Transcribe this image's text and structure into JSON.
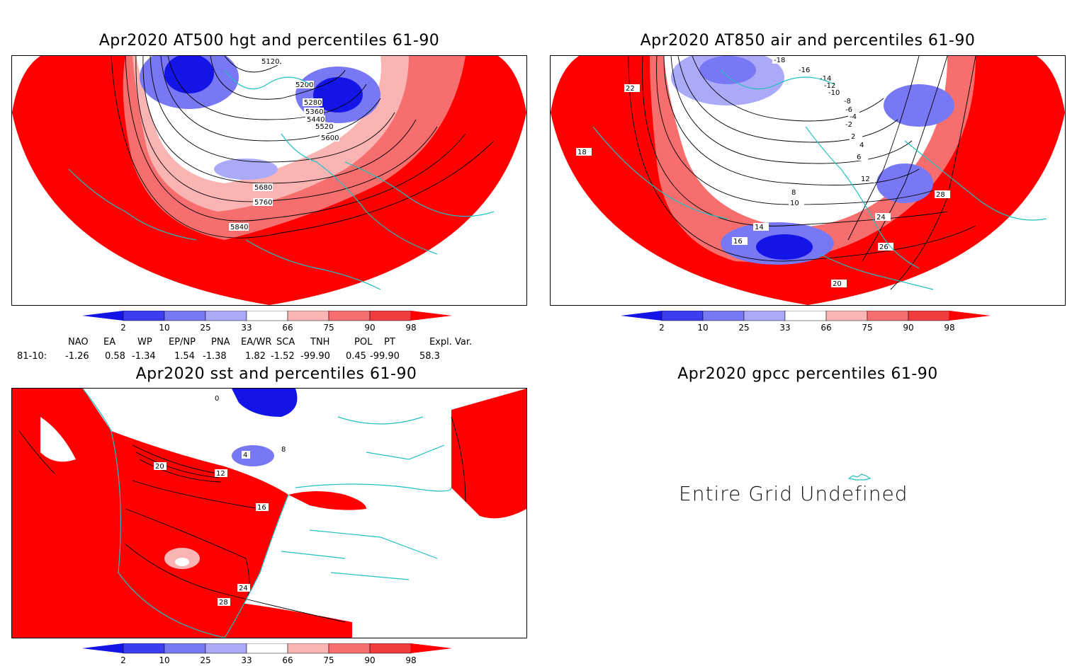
{
  "panels": [
    {
      "title": "Apr2020 AT500 hgt and percentiles 61-90",
      "contour_labels": [
        "5120",
        "5200",
        "5280",
        "5360",
        "5440",
        "5520",
        "5600",
        "5680",
        "5760",
        "5840"
      ]
    },
    {
      "title": "Apr2020 AT850 air and percentiles 61-90",
      "contour_labels": [
        "-18",
        "-16",
        "-14",
        "-12",
        "-10",
        "-8",
        "-6",
        "-4",
        "-2",
        "2",
        "4",
        "6",
        "8",
        "10",
        "12",
        "14",
        "16",
        "18",
        "20",
        "22",
        "24",
        "26",
        "28"
      ]
    },
    {
      "title": "Apr2020 sst and percentiles 61-90",
      "contour_labels": [
        "0",
        "4",
        "8",
        "12",
        "16",
        "20",
        "24",
        "28"
      ]
    },
    {
      "title": "Apr2020 gpcc percentiles 61-90",
      "message": "Entire Grid Undefined"
    }
  ],
  "colorbar": {
    "ticks": [
      "2",
      "10",
      "25",
      "33",
      "66",
      "75",
      "90",
      "98"
    ],
    "colors": [
      "#1414e6",
      "#3c3cf0",
      "#7878f5",
      "#aaaaf8",
      "#ffffff",
      "#fbb4b4",
      "#f76e6e",
      "#f03c3c",
      "#ff0000"
    ]
  },
  "indices": {
    "headers": [
      "NAO",
      "EA",
      "WP",
      "EP/NP",
      "PNA",
      "EA/WR",
      "SCA",
      "TNH",
      "POL",
      "PT",
      "Expl. Var."
    ],
    "row_label": "81-10:",
    "values": [
      "-1.26",
      "0.58",
      "-1.34",
      "1.54",
      "-1.38",
      "1.82",
      "-1.52",
      "-99.90",
      "0.45",
      "-99.90",
      "58.3"
    ]
  },
  "chart_data": [
    {
      "type": "heatmap",
      "title": "Apr2020 AT500 hgt and percentiles 61-90",
      "contour_levels": [
        5120,
        5200,
        5280,
        5360,
        5440,
        5520,
        5600,
        5680,
        5760,
        5840
      ],
      "color_levels": [
        2,
        10,
        25,
        33,
        66,
        75,
        90,
        98
      ]
    },
    {
      "type": "heatmap",
      "title": "Apr2020 AT850 air and percentiles 61-90",
      "contour_levels": [
        -18,
        -16,
        -14,
        -12,
        -10,
        -8,
        -6,
        -4,
        -2,
        2,
        4,
        6,
        8,
        10,
        12,
        14,
        16,
        18,
        20,
        22,
        24,
        26,
        28
      ],
      "color_levels": [
        2,
        10,
        25,
        33,
        66,
        75,
        90,
        98
      ]
    },
    {
      "type": "heatmap",
      "title": "Apr2020 sst and percentiles 61-90",
      "contour_levels": [
        0,
        4,
        8,
        12,
        16,
        20,
        24,
        28
      ],
      "color_levels": [
        2,
        10,
        25,
        33,
        66,
        75,
        90,
        98
      ]
    },
    {
      "type": "heatmap",
      "title": "Apr2020 gpcc percentiles 61-90",
      "color_levels": [
        2,
        10,
        25,
        33,
        66,
        75,
        90,
        98
      ]
    }
  ]
}
